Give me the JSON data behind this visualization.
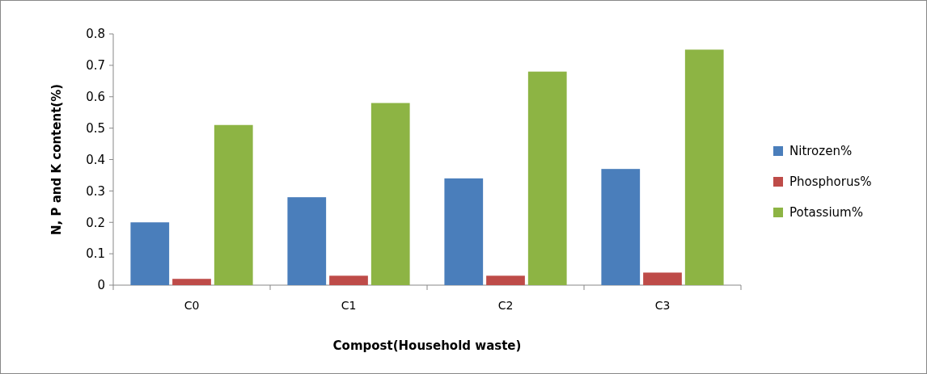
{
  "chart_data": {
    "type": "bar",
    "xlabel": "Compost(Household waste)",
    "ylabel": "N, P and K content(%)",
    "categories": [
      "C0",
      "C1",
      "C2",
      "C3"
    ],
    "series": [
      {
        "name": "Nitrozen%",
        "color": "#4a7ebb",
        "values": [
          0.2,
          0.28,
          0.34,
          0.37
        ]
      },
      {
        "name": "Phosphorus%",
        "color": "#be4b48",
        "values": [
          0.02,
          0.03,
          0.03,
          0.04
        ]
      },
      {
        "name": "Potassium%",
        "color": "#8db444",
        "values": [
          0.51,
          0.58,
          0.68,
          0.75
        ]
      }
    ],
    "ylim": [
      0,
      0.8
    ],
    "yticks": [
      0,
      0.1,
      0.2,
      0.3,
      0.4,
      0.5,
      0.6,
      0.7,
      0.8
    ],
    "legend": "right",
    "grid": false
  }
}
